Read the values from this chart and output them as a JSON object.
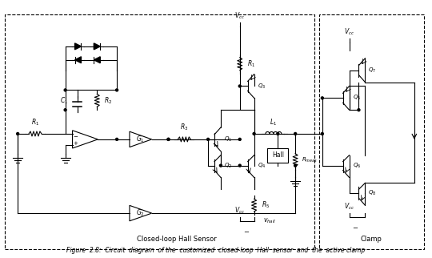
{
  "title": "Figure  2.8:  Circuit  diagram  of the  customized  closed-loop  Hall  sensor  and  the  active clamp",
  "fig_width": 5.4,
  "fig_height": 3.22,
  "dpi": 100,
  "bg_color": "#ffffff",
  "line_color": "#000000",
  "box1_label": "Closed-loop Hall Sensor",
  "box2_label": "Clamp",
  "component_labels": {
    "R1": "R_1",
    "R2": "R_2",
    "R3": "R_3",
    "R4": "R_1",
    "R5": "R_5",
    "C1": "C_1",
    "L1": "L_1",
    "Rmeas": "R_{meas}",
    "G1": "G_1",
    "G2": "G_2",
    "Q1": "Q_1",
    "Q2": "Q_2",
    "Q3": "Q_3",
    "Q4": "Q_4",
    "Q5": "Q_5",
    "Q6": "Q_6",
    "Q7": "Q_7",
    "Q8": "Q_8",
    "Hall": "Hall",
    "Vcc_top": "V_{cc}",
    "Vcc_bot": "V_{cc}",
    "Vcc_clamp": "V_{cc}",
    "Vcc_clamp_bot": "V_{cc}",
    "vhall": "v_{hall}"
  }
}
